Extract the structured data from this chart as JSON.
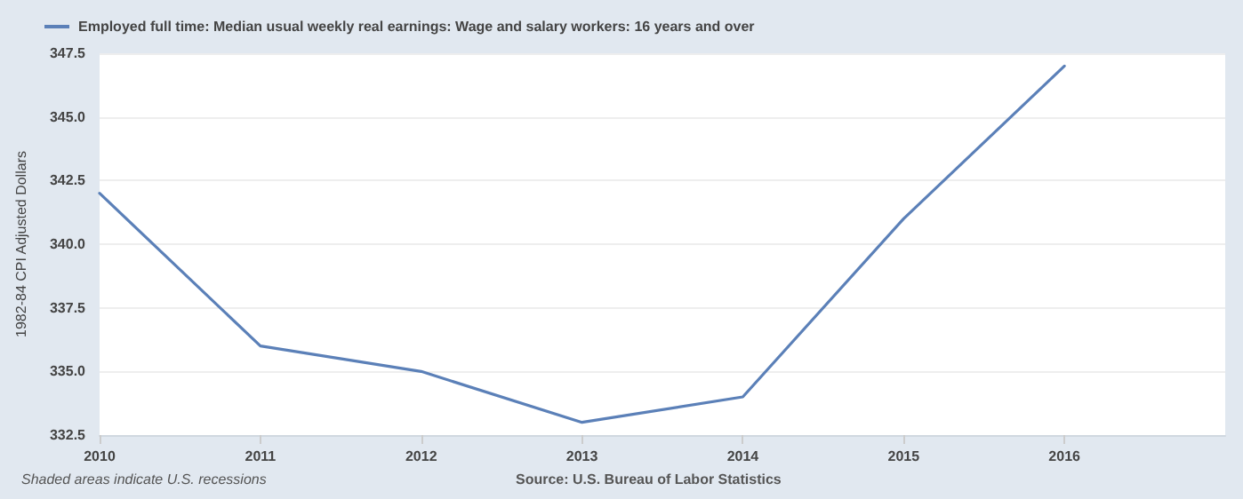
{
  "chart_data": {
    "type": "line",
    "ylabel": "1982-84 CPI Adjusted Dollars",
    "x": [
      2010,
      2011,
      2012,
      2013,
      2014,
      2015,
      2016
    ],
    "series": [
      {
        "name": "Employed full time: Median usual weekly real earnings: Wage and salary workers: 16 years and over",
        "color": "#5b80b8",
        "values": [
          342,
          336,
          335,
          333,
          334,
          341,
          347
        ]
      }
    ],
    "xlim": [
      2010,
      2017
    ],
    "xticks": [
      2010,
      2011,
      2012,
      2013,
      2014,
      2015,
      2016
    ],
    "ylim": [
      332.5,
      347.5
    ],
    "yticks": [
      {
        "value": 332.5,
        "label": "332.5"
      },
      {
        "value": 335,
        "label": "335.0"
      },
      {
        "value": 337.5,
        "label": "337.5"
      },
      {
        "value": 340,
        "label": "340.0"
      },
      {
        "value": 342.5,
        "label": "342.5"
      },
      {
        "value": 345,
        "label": "345.0"
      },
      {
        "value": 347.5,
        "label": "347.5"
      }
    ],
    "grid": "y",
    "legend": "top left",
    "marker": "none",
    "line_style": "solid",
    "annotations": [
      "Shaded areas indicate U.S. recessions",
      "Source: U.S. Bureau of Labor Statistics"
    ]
  }
}
